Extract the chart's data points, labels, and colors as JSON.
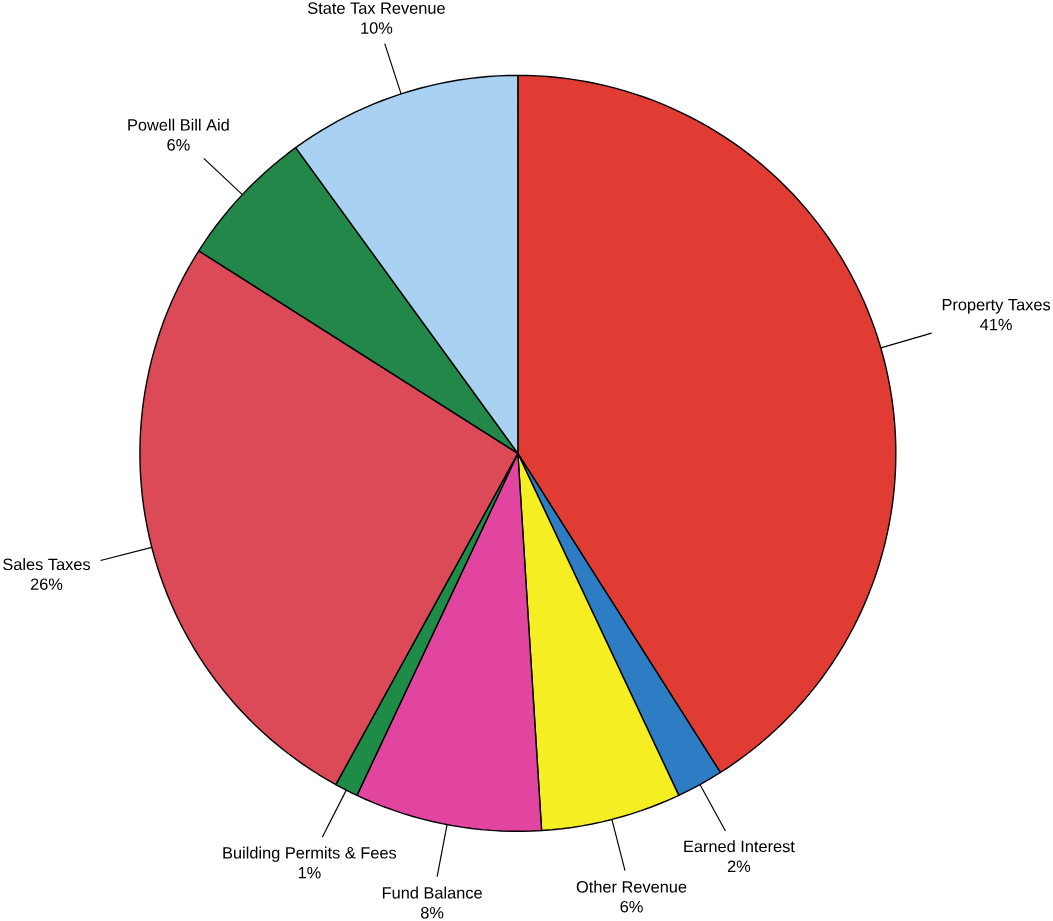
{
  "chart_data": {
    "type": "pie",
    "categories": [
      "Property Taxes",
      "Earned Interest",
      "Other Revenue",
      "Fund Balance",
      "Building Permits & Fees",
      "Sales Taxes",
      "Powell Bill Aid",
      "State Tax Revenue"
    ],
    "values": [
      41,
      2,
      6,
      8,
      1,
      26,
      6,
      10
    ],
    "value_labels": [
      "41%",
      "2%",
      "6%",
      "8%",
      "1%",
      "26%",
      "6%",
      "10%"
    ],
    "colors": [
      "#e03c33",
      "#2e7cc4",
      "#f4ee22",
      "#e2459f",
      "#1e8c46",
      "#dc4a58",
      "#23874a",
      "#a9d1f2"
    ]
  }
}
